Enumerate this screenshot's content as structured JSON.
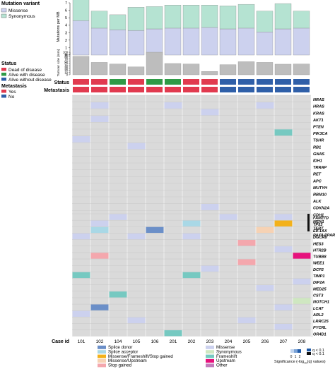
{
  "chart_data": [
    {
      "type": "bar",
      "ylabel": "Mutations per MB",
      "ylim": [
        0,
        7
      ],
      "yticks": [
        0,
        1,
        2,
        3,
        4,
        5,
        6,
        7
      ],
      "categories": [
        "101",
        "102",
        "104",
        "105",
        "106",
        "201",
        "202",
        "203",
        "204",
        "205",
        "206",
        "207",
        "208"
      ],
      "series": [
        {
          "name": "Missense",
          "color": "#ccd1ee",
          "values": [
            4.6,
            3.6,
            3.4,
            3.3,
            3.5,
            3.6,
            3.6,
            3.7,
            3.5,
            3.6,
            3.1,
            3.5,
            3.6
          ]
        },
        {
          "name": "Synonymous",
          "color": "#b5e3d2",
          "values": [
            2.9,
            2.3,
            2.0,
            3.1,
            3.0,
            3.1,
            3.1,
            3.0,
            3.1,
            3.2,
            2.8,
            3.4,
            2.3
          ]
        }
      ]
    },
    {
      "type": "bar",
      "ylabel": "Tumour size (mm)",
      "ylim": [
        0,
        100
      ],
      "yticks": [
        0,
        10,
        20,
        30,
        40,
        50,
        60,
        70,
        80,
        90,
        100
      ],
      "categories": [
        "101",
        "102",
        "104",
        "105",
        "106",
        "201",
        "202",
        "203",
        "204",
        "205",
        "206",
        "207",
        "208"
      ],
      "values": [
        82,
        55,
        48,
        35,
        100,
        50,
        48,
        15,
        45,
        58,
        55,
        47,
        48
      ],
      "color": "#bdbdbd"
    },
    {
      "type": "heatmap",
      "columns": [
        "101",
        "102",
        "104",
        "105",
        "106",
        "201",
        "202",
        "203",
        "204",
        "205",
        "206",
        "207",
        "208"
      ],
      "status": [
        "dead",
        "dead",
        "alive_with",
        "dead",
        "alive_with",
        "alive_with",
        "dead",
        "dead",
        "alive_without",
        "alive_without",
        "alive_without",
        "alive_without",
        "alive_without"
      ],
      "metastasis": [
        "yes",
        "yes",
        "yes",
        "yes",
        "yes",
        "yes",
        "yes",
        "yes",
        "no",
        "no",
        "no",
        "no",
        "no"
      ],
      "genes_top": [
        "NRAS",
        "HRAS",
        "KRAS",
        "AKT1",
        "PTEN",
        "PIK3CA",
        "TSHR",
        "RB1",
        "GNAS",
        "IDH1",
        "TRRAP",
        "RET",
        "APC",
        "MUTYH",
        "RBM10",
        "ALK",
        "CDKN2A",
        "CDH1",
        "MEN1",
        "TERT",
        "PAX8-PPARg"
      ],
      "cells_top": [
        {
          "row": 1,
          "col": 1,
          "v": "missense"
        },
        {
          "row": 1,
          "col": 5,
          "v": "missense"
        },
        {
          "row": 1,
          "col": 10,
          "v": "missense"
        },
        {
          "row": 2,
          "col": 7,
          "v": "missense"
        },
        {
          "row": 3,
          "col": 1,
          "v": "missense"
        },
        {
          "row": 5,
          "col": 11,
          "v": "frameshift"
        },
        {
          "row": 6,
          "col": 0,
          "v": "missense"
        },
        {
          "row": 7,
          "col": 3,
          "v": "missense"
        },
        {
          "row": 16,
          "col": 7,
          "v": "missense"
        },
        {
          "row": 18,
          "col": 3,
          "v": "missense"
        },
        {
          "row": 19,
          "col": 1,
          "v": "upstream"
        },
        {
          "row": 19,
          "col": 5,
          "v": "upstream"
        },
        {
          "row": 19,
          "col": 7,
          "v": "upstream"
        },
        {
          "row": 19,
          "col": 10,
          "v": "upstream"
        },
        {
          "row": 20,
          "col": 8,
          "v": "other"
        },
        {
          "row": 20,
          "col": 9,
          "v": "other"
        }
      ],
      "genes_bottom": [
        "FAM27D",
        "TP53",
        "EIF1AX",
        "DGCR8",
        "HES3",
        "HTR2B",
        "TUBB8",
        "WEE1",
        "DCP2",
        "TIMP1",
        "DIP2A",
        "MED25",
        "CST3",
        "NOTCH1",
        "LCAT",
        "ARL2",
        "LRRC25",
        "PYCRL",
        "OR4D1"
      ],
      "cells_bottom": [
        {
          "row": 0,
          "col": 2,
          "v": "missense"
        },
        {
          "row": 0,
          "col": 8,
          "v": "missense"
        },
        {
          "row": 0,
          "col": 11,
          "v": "missense"
        },
        {
          "row": 1,
          "col": 1,
          "v": "missense"
        },
        {
          "row": 1,
          "col": 6,
          "v": "splice_acceptor"
        },
        {
          "row": 1,
          "col": 11,
          "v": "missense_frameshift_stop"
        },
        {
          "row": 2,
          "col": 1,
          "v": "splice_acceptor"
        },
        {
          "row": 2,
          "col": 4,
          "v": "splice_donor"
        },
        {
          "row": 2,
          "col": 10,
          "v": "missense_upstream"
        },
        {
          "row": 3,
          "col": 0,
          "v": "missense"
        },
        {
          "row": 3,
          "col": 3,
          "v": "missense"
        },
        {
          "row": 3,
          "col": 6,
          "v": "missense"
        },
        {
          "row": 4,
          "col": 9,
          "v": "stop_gained"
        },
        {
          "row": 5,
          "col": 11,
          "v": "missense"
        },
        {
          "row": 6,
          "col": 1,
          "v": "stop_gained"
        },
        {
          "row": 6,
          "col": 12,
          "v": "upstream"
        },
        {
          "row": 7,
          "col": 9,
          "v": "stop_gained"
        },
        {
          "row": 8,
          "col": 7,
          "v": "missense"
        },
        {
          "row": 9,
          "col": 0,
          "v": "frameshift"
        },
        {
          "row": 9,
          "col": 6,
          "v": "frameshift"
        },
        {
          "row": 10,
          "col": 12,
          "v": "missense"
        },
        {
          "row": 11,
          "col": 10,
          "v": "missense"
        },
        {
          "row": 12,
          "col": 2,
          "v": "frameshift"
        },
        {
          "row": 13,
          "col": 12,
          "v": "synonymous"
        },
        {
          "row": 14,
          "col": 1,
          "v": "splice_donor"
        },
        {
          "row": 14,
          "col": 11,
          "v": "missense"
        },
        {
          "row": 15,
          "col": 0,
          "v": "missense"
        },
        {
          "row": 16,
          "col": 3,
          "v": "missense"
        },
        {
          "row": 16,
          "col": 9,
          "v": "missense"
        },
        {
          "row": 17,
          "col": 11,
          "v": "missense"
        },
        {
          "row": 18,
          "col": 5,
          "v": "frameshift"
        }
      ]
    }
  ],
  "labels": {
    "mutation_variant_title": "Mutation variant",
    "missense": "Missense",
    "synonymous": "Synonymous",
    "status_title": "Status",
    "dead": "Dead of disease",
    "alive_with": "Alive with disease",
    "alive_without": "Alive without disease",
    "metastasis_title": "Metastasis",
    "yes": "Yes",
    "no": "No",
    "status_row": "Status",
    "metastasis_row": "Metastasis",
    "case_id": "Case id",
    "significance": "Significance (-log",
    "significance_sub": "10",
    "significance_tail": "(q) values)",
    "sig_ticks": [
      "0",
      "1",
      "2"
    ],
    "q_label1": "q < 0.1",
    "q_label2": "q < 0.1"
  },
  "legend_variants": [
    {
      "key": "splice_donor",
      "label": "Splice donor",
      "color": "#6b8fc8"
    },
    {
      "key": "splice_acceptor",
      "label": "Splice acceptor",
      "color": "#a9d8e6"
    },
    {
      "key": "missense_frameshift_stop",
      "label": "Missense/Frameshift/Stop gained",
      "color": "#f3b11a"
    },
    {
      "key": "missense_upstream",
      "label": "Missense/Upstream",
      "color": "#f6d2b4"
    },
    {
      "key": "stop_gained",
      "label": "Stop gained",
      "color": "#f4a7ad"
    },
    {
      "key": "missense",
      "label": "Missense",
      "color": "#ccd1ee"
    },
    {
      "key": "synonymous",
      "label": "Synonymous",
      "color": "#cfe7c1"
    },
    {
      "key": "frameshift",
      "label": "Frameshift",
      "color": "#76c9c1"
    },
    {
      "key": "upstream",
      "label": "Upstream",
      "color": "#e6117c"
    },
    {
      "key": "other",
      "label": "Other",
      "color": "#c37cbc"
    }
  ],
  "colors": {
    "dead": "#e13a4f",
    "alive_with": "#2e9a46",
    "alive_without": "#2f5fa8",
    "yes": "#e13a4f",
    "no": "#2f5fa8",
    "grid_bg": "#dadada",
    "tumour": "#bdbdbd"
  }
}
